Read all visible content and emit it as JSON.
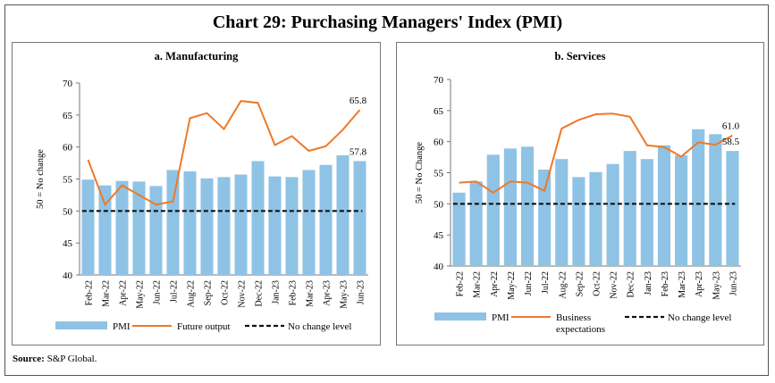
{
  "title": "Chart 29: Purchasing Managers' Index (PMI)",
  "source_label": "Source:",
  "source_text": "S&P Global.",
  "colors": {
    "bar": "#8fc3e5",
    "line": "#ec7a2a",
    "dash": "#111111"
  },
  "chart_data": [
    {
      "type": "bar",
      "title": "a. Manufacturing",
      "ylabel": "50 = No change",
      "ylim": [
        40,
        70
      ],
      "yticks": [
        40,
        45,
        50,
        55,
        60,
        65,
        70
      ],
      "categories": [
        "Feb-22",
        "Mar-22",
        "Apr-22",
        "May-22",
        "Jun-22",
        "Jul-22",
        "Aug-22",
        "Sep-22",
        "Oct-22",
        "Nov-22",
        "Dec-22",
        "Jan-23",
        "Feb-23",
        "Mar-23",
        "Apr-23",
        "May-23",
        "Jun-23"
      ],
      "series": [
        {
          "name": "PMI",
          "kind": "bar",
          "values": [
            54.9,
            54.0,
            54.7,
            54.6,
            53.9,
            56.4,
            56.2,
            55.1,
            55.3,
            55.7,
            57.8,
            55.4,
            55.3,
            56.4,
            57.2,
            58.7,
            57.8
          ]
        },
        {
          "name": "Future output",
          "kind": "line",
          "values": [
            58.0,
            51.0,
            54.0,
            52.5,
            51.0,
            51.5,
            64.5,
            65.3,
            62.8,
            67.2,
            66.9,
            60.3,
            61.7,
            59.4,
            60.1,
            62.7,
            65.8
          ]
        },
        {
          "name": "No change level",
          "kind": "dashed",
          "value": 50
        }
      ],
      "annotations": [
        {
          "text": "65.8",
          "series": 1,
          "index": 16,
          "pos": "above"
        },
        {
          "text": "57.8",
          "series": 0,
          "index": 16,
          "pos": "above"
        }
      ]
    },
    {
      "type": "bar",
      "title": "b. Services",
      "ylabel": "50 = No Change",
      "ylim": [
        40,
        70
      ],
      "yticks": [
        40,
        45,
        50,
        55,
        60,
        65,
        70
      ],
      "categories": [
        "Feb-22",
        "Mar-22",
        "Apr-22",
        "May-22",
        "Jun-22",
        "Jul-22",
        "Aug-22",
        "Sep-22",
        "Oct-22",
        "Nov-22",
        "Dec-22",
        "Jan-23",
        "Feb-23",
        "Mar-23",
        "Apr-23",
        "May-23",
        "Jun-23"
      ],
      "series": [
        {
          "name": "PMI",
          "kind": "bar",
          "values": [
            51.8,
            53.6,
            57.9,
            58.9,
            59.2,
            55.5,
            57.2,
            54.3,
            55.1,
            56.4,
            58.5,
            57.2,
            59.4,
            57.8,
            62.0,
            61.2,
            58.5
          ]
        },
        {
          "name": "Business expectations",
          "kind": "line",
          "values": [
            53.4,
            53.6,
            51.8,
            53.6,
            53.4,
            52.1,
            62.1,
            63.5,
            64.4,
            64.5,
            64.0,
            59.4,
            59.1,
            57.6,
            59.9,
            59.5,
            61.0
          ]
        },
        {
          "name": "No change level",
          "kind": "dashed",
          "value": 50
        }
      ],
      "annotations": [
        {
          "text": "61.0",
          "series": 1,
          "index": 16,
          "pos": "above"
        },
        {
          "text": "58.5",
          "series": 0,
          "index": 16,
          "pos": "above"
        }
      ]
    }
  ],
  "legends": [
    {
      "pmi": "PMI",
      "line": "Future output",
      "dash": "No change level"
    },
    {
      "pmi": "PMI",
      "line1": "Business",
      "line2": "expectations",
      "dash": "No change level"
    }
  ]
}
